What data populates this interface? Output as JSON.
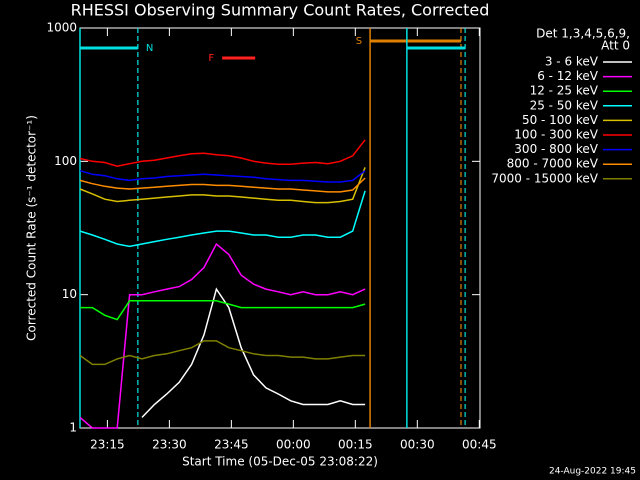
{
  "chart_data": {
    "type": "line",
    "title": "RHESSI Observing Summary Count Rates, Corrected",
    "y_label": "Corrected Count Rate (s⁻¹ detector⁻¹)",
    "x_label": "Start Time (05-Dec-05 23:08:22)",
    "footer": "24-Aug-2022 19:45",
    "legend_title": [
      "Det 1,3,4,5,6,9,",
      "Att 0"
    ],
    "legend": "upper right outside",
    "y_log": true,
    "xlim": [
      0,
      96.8
    ],
    "ylim": [
      1,
      1000
    ],
    "yticks": [
      1,
      10,
      100,
      1000
    ],
    "xticks": [
      {
        "value": 6.63,
        "label": "23:15"
      },
      {
        "value": 21.63,
        "label": "23:30"
      },
      {
        "value": 36.63,
        "label": "23:45"
      },
      {
        "value": 51.63,
        "label": "00:00"
      },
      {
        "value": 66.63,
        "label": "00:15"
      },
      {
        "value": 81.63,
        "label": "00:30"
      },
      {
        "value": 96.63,
        "label": "00:45"
      }
    ],
    "intervals": [
      {
        "label": "N",
        "color": "#00e0e0",
        "start": 0,
        "end": 14
      },
      {
        "label": "F",
        "color": "#ff2020",
        "start": 34.4,
        "end": 42.4
      },
      {
        "label": "S",
        "color": "#e08000",
        "start": 70.2,
        "end": 92.2
      },
      {
        "color": "#00e0e0",
        "start": 79.1,
        "end": 93.2
      }
    ],
    "x": [
      0,
      3,
      6,
      9,
      12,
      15,
      18,
      21,
      24,
      27,
      30,
      33,
      36,
      39,
      42,
      45,
      48,
      51,
      54,
      57,
      60,
      63,
      66,
      69
    ],
    "series": [
      {
        "name": "3 - 6 keV",
        "color": "#ffffff",
        "values": [
          null,
          null,
          null,
          null,
          null,
          1.2,
          1.5,
          1.8,
          2.2,
          3,
          5,
          11,
          8,
          4,
          2.5,
          2,
          1.8,
          1.6,
          1.5,
          1.5,
          1.5,
          1.6,
          1.5,
          1.5
        ]
      },
      {
        "name": "6 - 12 keV",
        "color": "#ff00ff",
        "values": [
          1.2,
          1,
          1,
          1,
          10,
          10,
          10.5,
          11,
          11.5,
          13,
          16,
          24,
          20,
          14,
          12,
          11,
          10.5,
          10,
          10.5,
          10,
          10,
          10.5,
          10,
          11
        ]
      },
      {
        "name": "12 - 25 keV",
        "color": "#00ff00",
        "values": [
          8,
          8,
          7,
          6.5,
          9,
          9,
          9,
          9,
          9,
          9,
          9,
          9,
          8.5,
          8,
          8,
          8,
          8,
          8,
          8,
          8,
          8,
          8,
          8,
          8.5
        ]
      },
      {
        "name": "25 - 50 keV",
        "color": "#00ffff",
        "values": [
          30,
          28,
          26,
          24,
          23,
          24,
          25,
          26,
          27,
          28,
          29,
          30,
          30,
          29,
          28,
          28,
          27,
          27,
          28,
          28,
          27,
          27,
          30,
          60
        ]
      },
      {
        "name": "50 - 100 keV",
        "color": "#d8c000",
        "values": [
          62,
          57,
          52,
          50,
          51,
          52,
          53,
          54,
          55,
          56,
          56,
          55,
          55,
          54,
          53,
          52,
          51,
          51,
          50,
          49,
          49,
          50,
          52,
          90
        ]
      },
      {
        "name": "100 - 300 keV",
        "color": "#ff0000",
        "values": [
          105,
          100,
          98,
          92,
          96,
          100,
          102,
          106,
          110,
          114,
          115,
          112,
          110,
          106,
          100,
          97,
          95,
          95,
          97,
          98,
          96,
          100,
          110,
          145
        ]
      },
      {
        "name": "300 - 800 keV",
        "color": "#0000ff",
        "values": [
          85,
          80,
          78,
          74,
          72,
          74,
          75,
          77,
          78,
          79,
          80,
          79,
          78,
          77,
          76,
          74,
          73,
          72,
          72,
          71,
          70,
          70,
          72,
          85
        ]
      },
      {
        "name": "800 - 7000 keV",
        "color": "#ff8c00",
        "values": [
          72,
          68,
          65,
          63,
          62,
          63,
          64,
          65,
          66,
          67,
          67,
          66,
          66,
          65,
          64,
          63,
          62,
          62,
          61,
          60,
          59,
          59,
          61,
          75
        ]
      },
      {
        "name": "7000 - 15000 keV",
        "color": "#808000",
        "values": [
          3.5,
          3,
          3,
          3.3,
          3.5,
          3.3,
          3.5,
          3.6,
          3.8,
          4,
          4.5,
          4.5,
          4,
          3.8,
          3.6,
          3.5,
          3.5,
          3.4,
          3.4,
          3.3,
          3.3,
          3.4,
          3.5,
          3.5
        ]
      }
    ]
  }
}
